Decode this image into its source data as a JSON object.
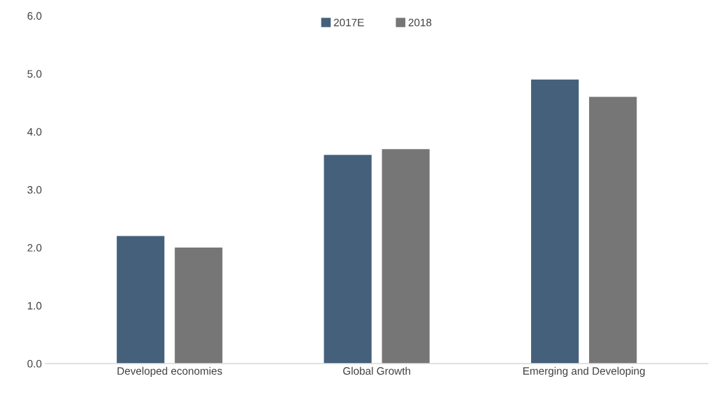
{
  "chart_data": {
    "type": "bar",
    "categories": [
      "Developed economies",
      "Global Growth",
      "Emerging and Developing"
    ],
    "series": [
      {
        "name": "2017E",
        "color": "#44607a",
        "values": [
          2.2,
          3.6,
          4.9
        ]
      },
      {
        "name": "2018",
        "color": "#767676",
        "values": [
          2.0,
          3.7,
          4.6
        ]
      }
    ],
    "ylim": [
      0,
      6
    ],
    "yticks": [
      {
        "value": 0,
        "label": "0.0"
      },
      {
        "value": 1,
        "label": "1.0"
      },
      {
        "value": 2,
        "label": "2.0"
      },
      {
        "value": 3,
        "label": "3.0"
      },
      {
        "value": 4,
        "label": "4.0"
      },
      {
        "value": 5,
        "label": "5.0"
      },
      {
        "value": 6,
        "label": "6.0"
      }
    ],
    "grid": false,
    "legend": "top"
  }
}
